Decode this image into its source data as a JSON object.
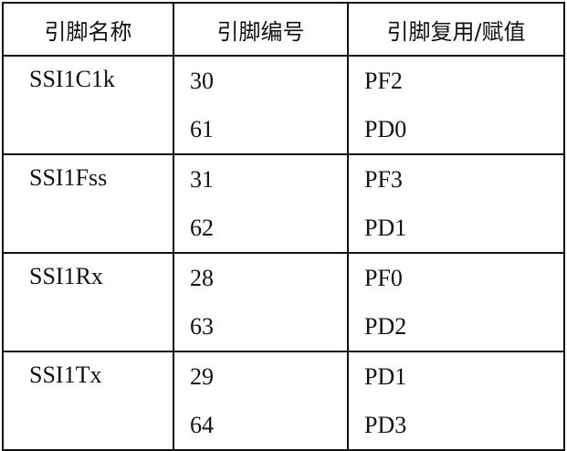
{
  "headers": [
    "引脚名称",
    "引脚编号",
    "引脚复用/赋值"
  ],
  "rows": [
    {
      "name": "SSI1C1k",
      "pins": [
        {
          "num": "30",
          "mux": "PF2"
        },
        {
          "num": "61",
          "mux": "PD0"
        }
      ]
    },
    {
      "name": "SSI1Fss",
      "pins": [
        {
          "num": "31",
          "mux": "PF3"
        },
        {
          "num": "62",
          "mux": "PD1"
        }
      ]
    },
    {
      "name": "SSI1Rx",
      "pins": [
        {
          "num": "28",
          "mux": "PF0"
        },
        {
          "num": "63",
          "mux": "PD2"
        }
      ]
    },
    {
      "name": "SSI1Tx",
      "pins": [
        {
          "num": "29",
          "mux": "PD1"
        },
        {
          "num": "64",
          "mux": "PD3"
        }
      ]
    }
  ]
}
